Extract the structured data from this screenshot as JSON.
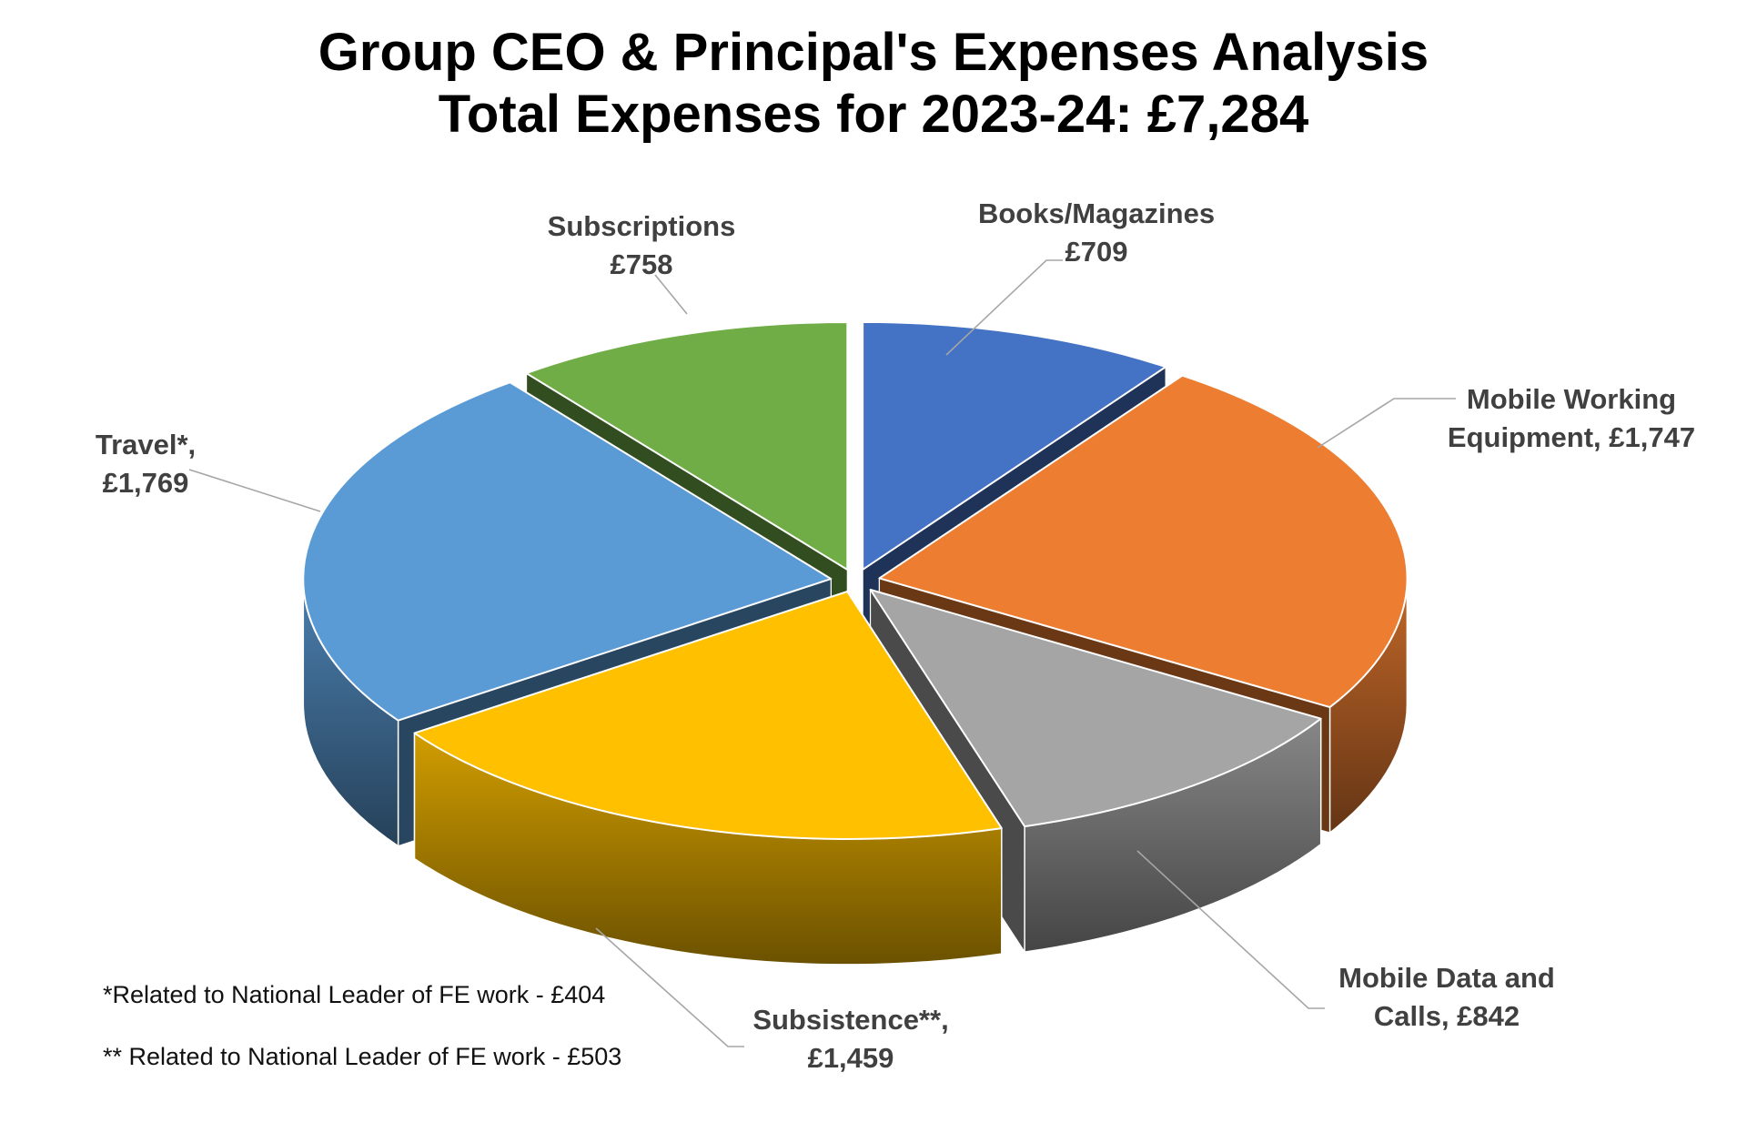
{
  "chart_data": {
    "type": "pie",
    "style": "3d-exploded",
    "title_line1": "Group CEO & Principal's Expenses Analysis",
    "title_line2": "Total Expenses for 2023-24: £7,284",
    "total": 7284,
    "currency": "£",
    "start_angle_deg": 0,
    "direction": "clockwise",
    "legend_position": "none",
    "slices": [
      {
        "name": "Books/Magazines",
        "value": 709,
        "color": "#4472C4",
        "label_line1": "Books/Magazines",
        "label_line2": "£709"
      },
      {
        "name": "Mobile Working Equipment",
        "value": 1747,
        "color": "#ED7D31",
        "label_line1": "Mobile Working",
        "label_line2": "Equipment, £1,747"
      },
      {
        "name": "Mobile Data and Calls",
        "value": 842,
        "color": "#A5A5A5",
        "label_line1": "Mobile Data and",
        "label_line2": "Calls, £842"
      },
      {
        "name": "Subsistence",
        "value": 1459,
        "color": "#FFC000",
        "label_line1": "Subsistence**,",
        "label_line2": "£1,459"
      },
      {
        "name": "Travel",
        "value": 1769,
        "color": "#5B9BD5",
        "label_line1": "Travel*,",
        "label_line2": "£1,769"
      },
      {
        "name": "Subscriptions",
        "value": 758,
        "color": "#70AD47",
        "label_line1": "Subscriptions",
        "label_line2": "£758"
      }
    ],
    "footnotes": [
      "*Related to National Leader of FE work - £404",
      "** Related to National Leader of FE work - £503"
    ],
    "label_color": "#404040",
    "leader_line_color": "#A6A6A6"
  }
}
